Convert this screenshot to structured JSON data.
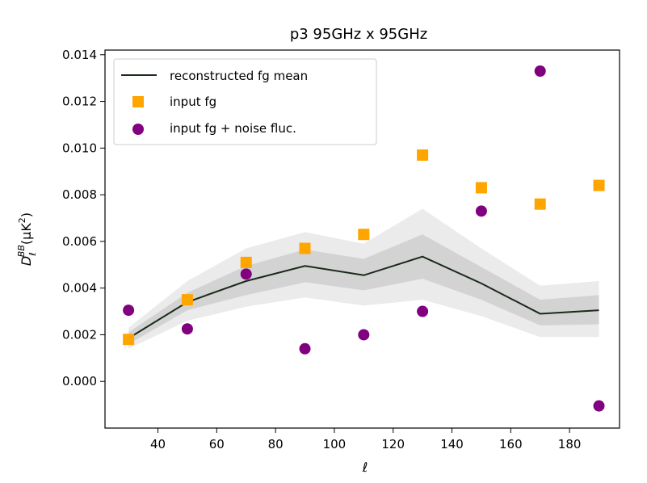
{
  "chart_data": {
    "type": "line",
    "title": "p3 95GHz x 95GHz",
    "xlabel": "ℓ",
    "ylabel_main": "D",
    "ylabel_sub": "ℓ",
    "ylabel_sup": "BB",
    "ylabel_unit": "(μK",
    "ylabel_unit_sup": "2",
    "ylabel_close": ")",
    "xlim": [
      22,
      197
    ],
    "ylim": [
      -0.002,
      0.0142
    ],
    "x_ticks": [
      40,
      60,
      80,
      100,
      120,
      140,
      160,
      180
    ],
    "y_ticks": [
      0.0,
      0.002,
      0.004,
      0.006,
      0.008,
      0.01,
      0.012,
      0.014
    ],
    "y_tick_labels": [
      "0.000",
      "0.002",
      "0.004",
      "0.006",
      "0.008",
      "0.010",
      "0.012",
      "0.014"
    ],
    "x": [
      30,
      50,
      70,
      90,
      110,
      130,
      150,
      170,
      190
    ],
    "series": [
      {
        "name": "reconstructed fg mean",
        "kind": "line",
        "color": "#1a2a1a",
        "values": [
          0.00185,
          0.0034,
          0.0043,
          0.00495,
          0.00455,
          0.00535,
          0.0042,
          0.0029,
          0.00305
        ]
      },
      {
        "name": "input fg",
        "kind": "square",
        "color": "#ffa500",
        "values": [
          0.0018,
          0.0035,
          0.0051,
          0.0057,
          0.0063,
          0.0097,
          0.0083,
          0.0076,
          0.0084
        ]
      },
      {
        "name": "input fg + noise fluc.",
        "kind": "circle",
        "color": "#800080",
        "values": [
          0.00305,
          0.00225,
          0.0046,
          0.0014,
          0.002,
          0.003,
          0.0073,
          0.0133,
          -0.00105
        ]
      }
    ],
    "bands": [
      {
        "name": "outer-band",
        "color": "#ebebeb",
        "lower": [
          0.0014,
          0.0026,
          0.0032,
          0.0036,
          0.00325,
          0.0035,
          0.0028,
          0.0019,
          0.0019
        ],
        "upper": [
          0.0023,
          0.0043,
          0.0057,
          0.0064,
          0.0059,
          0.0074,
          0.0057,
          0.0041,
          0.0043
        ]
      },
      {
        "name": "inner-band",
        "color": "#d3d3d3",
        "lower": [
          0.0016,
          0.00305,
          0.0037,
          0.00425,
          0.0039,
          0.0044,
          0.0035,
          0.0024,
          0.00245
        ]
      },
      {
        "name": "inner-band-upper",
        "color": "#d3d3d3",
        "upper": [
          0.0021,
          0.0038,
          0.00495,
          0.00565,
          0.00525,
          0.0063,
          0.0049,
          0.0035,
          0.0037
        ]
      }
    ],
    "legend_position": "top-left",
    "grid": false
  }
}
